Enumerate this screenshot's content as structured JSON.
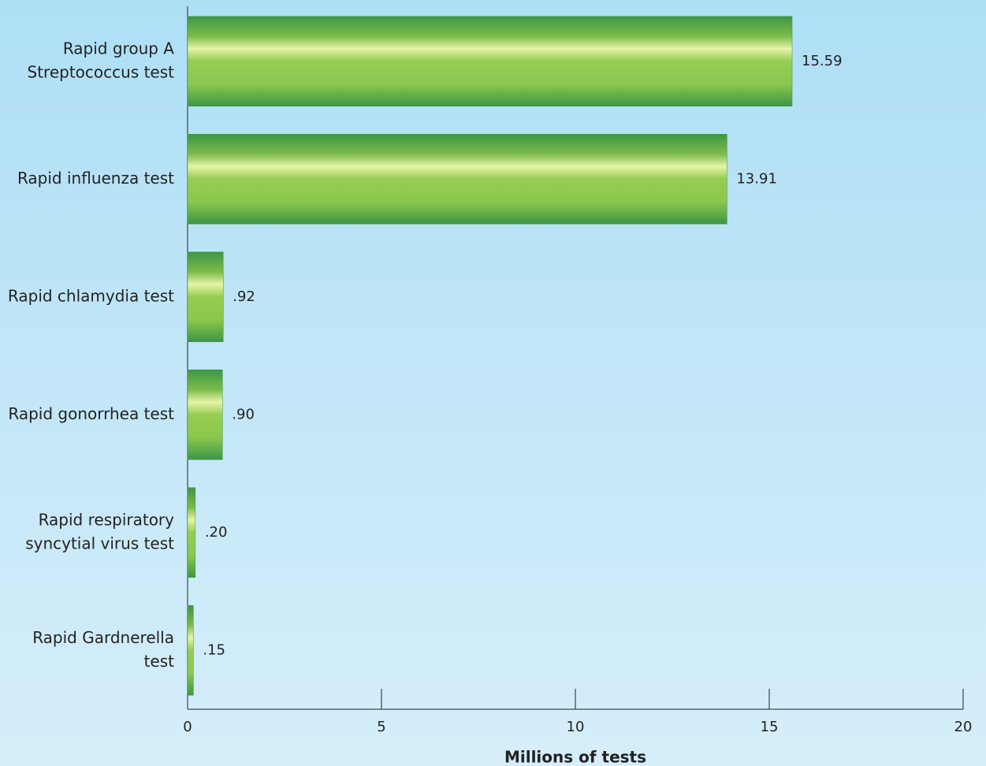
{
  "chart_data": {
    "type": "bar",
    "orientation": "horizontal",
    "categories": [
      [
        "Rapid group A",
        "Streptococcus test"
      ],
      [
        "Rapid influenza test"
      ],
      [
        "Rapid chlamydia test"
      ],
      [
        "Rapid gonorrhea test"
      ],
      [
        "Rapid respiratory",
        "syncytial virus test"
      ],
      [
        "Rapid Gardnerella",
        "test"
      ]
    ],
    "values": [
      15.59,
      13.91,
      0.92,
      0.9,
      0.2,
      0.15
    ],
    "value_labels": [
      "15.59",
      "13.91",
      ".92",
      ".90",
      ".20",
      ".15"
    ],
    "color": "#3d9645",
    "xlabel": "Millions of tests",
    "xlim": [
      0,
      20
    ],
    "xticks": [
      0,
      5,
      10,
      15,
      20
    ]
  }
}
